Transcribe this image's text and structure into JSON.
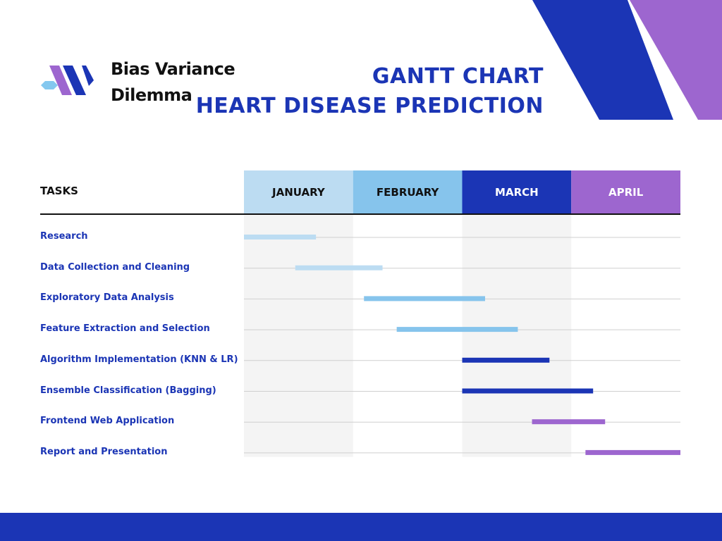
{
  "brand": {
    "line1": "Bias Variance",
    "line2": "Dilemma"
  },
  "title": {
    "line1": "GANTT CHART",
    "line2": "HEART DISEASE PREDICTION"
  },
  "colors": {
    "primary": "#1b35b5",
    "purple": "#9d66cf",
    "light_blue": "#bcdcf2",
    "sky_blue": "#86c4ec",
    "logo_cyan": "#84c8ef",
    "shade": "#f4f4f4",
    "row_line": "#cfcfcf"
  },
  "chart_data": {
    "type": "gantt",
    "tasks_header": "TASKS",
    "months": [
      {
        "name": "JANUARY",
        "color": "#bcdcf2",
        "text_color": "#111111"
      },
      {
        "name": "FEBRUARY",
        "color": "#86c4ec",
        "text_color": "#111111"
      },
      {
        "name": "MARCH",
        "color": "#1b35b5",
        "text_color": "#ffffff"
      },
      {
        "name": "APRIL",
        "color": "#9d66cf",
        "text_color": "#ffffff"
      }
    ],
    "tasks": [
      {
        "name": "Research",
        "start": 0.0,
        "end": 0.66,
        "color": "#bcdcf2"
      },
      {
        "name": "Data Collection and Cleaning",
        "start": 0.47,
        "end": 1.27,
        "color": "#bcdcf2"
      },
      {
        "name": "Exploratory Data Analysis",
        "start": 1.1,
        "end": 2.21,
        "color": "#86c4ec"
      },
      {
        "name": "Feature Extraction and Selection",
        "start": 1.4,
        "end": 2.51,
        "color": "#86c4ec"
      },
      {
        "name": "Algorithm Implementation (KNN & LR)",
        "start": 2.0,
        "end": 2.8,
        "color": "#1b35b5"
      },
      {
        "name": "Ensemble Classification (Bagging)",
        "start": 2.0,
        "end": 3.2,
        "color": "#1b35b5"
      },
      {
        "name": "Frontend Web Application",
        "start": 2.64,
        "end": 3.31,
        "color": "#9d66cf"
      },
      {
        "name": "Report and Presentation",
        "start": 3.13,
        "end": 4.0,
        "color": "#9d66cf"
      }
    ]
  }
}
